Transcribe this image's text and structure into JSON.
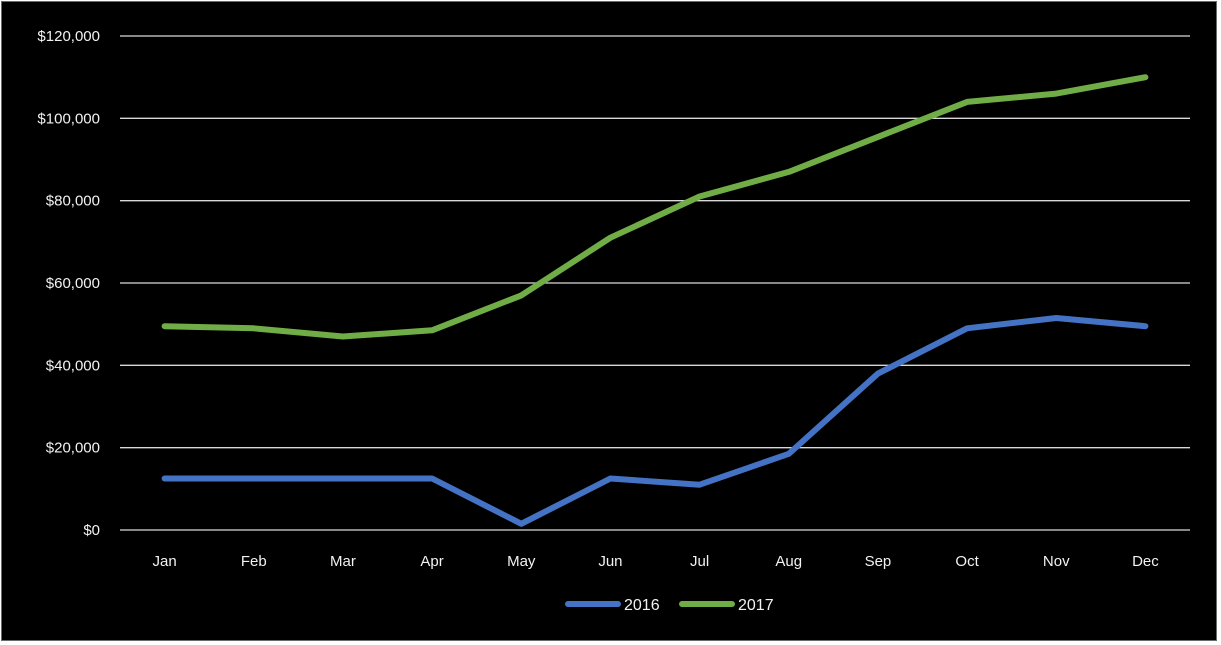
{
  "chart_data": {
    "type": "line",
    "title": "",
    "xlabel": "",
    "ylabel": "",
    "categories": [
      "Jan",
      "Feb",
      "Mar",
      "Apr",
      "May",
      "Jun",
      "Jul",
      "Aug",
      "Sep",
      "Oct",
      "Nov",
      "Dec"
    ],
    "yticks": [
      "$0",
      "$20,000",
      "$40,000",
      "$60,000",
      "$80,000",
      "$100,000",
      "$120,000"
    ],
    "ylim": [
      0,
      120000
    ],
    "grid": true,
    "legend_position": "bottom",
    "series": [
      {
        "name": "2016",
        "color": "#4472c4",
        "values": [
          12500,
          12500,
          12500,
          12500,
          1500,
          12500,
          11000,
          18500,
          38000,
          49000,
          51500,
          49500
        ]
      },
      {
        "name": "2017",
        "color": "#70ad47",
        "values": [
          49500,
          49000,
          47000,
          48500,
          57000,
          71000,
          81000,
          87000,
          95500,
          104000,
          106000,
          110000
        ]
      }
    ]
  }
}
